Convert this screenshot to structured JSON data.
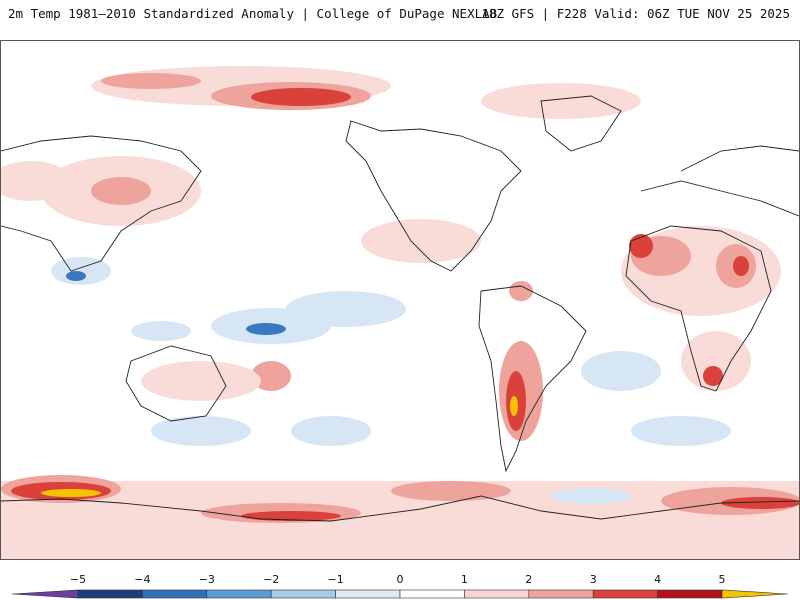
{
  "header": {
    "left_title": "2m Temp 1981–2010 Standardized Anomaly | College of DuPage NEXLAB",
    "right_title": "18Z GFS | F228 Valid: 06Z TUE NOV 25 2025"
  },
  "legend": {
    "ticks": [
      "−5",
      "−4",
      "−3",
      "−2",
      "−1",
      "0",
      "1",
      "2",
      "3",
      "4",
      "5"
    ],
    "colors": [
      "#6b3fa0",
      "#1f3d7a",
      "#2f6fb8",
      "#5b9bd5",
      "#a9c9e8",
      "#dce8f5",
      "#ffffff",
      "#f7d6d2",
      "#eea39c",
      "#d9413a",
      "#b3121a",
      "#7a0a10",
      "#f5c400"
    ]
  },
  "palette": {
    "warm_light": "#f9dcd7",
    "warm_mid": "#eea39c",
    "warm_strong": "#d9413a",
    "warm_extreme": "#a80f17",
    "yellow": "#f5c400",
    "cool_light": "#d7e6f4",
    "cool_mid": "#a9c9e8",
    "cool_strong": "#3a78c2",
    "coastline": "#222222"
  }
}
